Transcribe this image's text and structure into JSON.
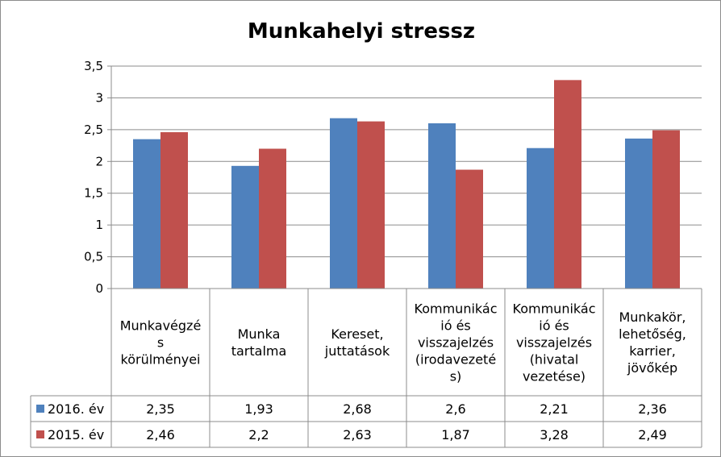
{
  "chart_data": {
    "type": "bar",
    "title": "Munkahelyi stressz",
    "categories": [
      [
        "Munkavégzé",
        "s",
        "körülményei"
      ],
      [
        "Munka",
        "tartalma"
      ],
      [
        "Kereset,",
        "juttatások"
      ],
      [
        "Kommunikác",
        "ió és",
        "visszajelzés",
        "(irodavezeté",
        "s)"
      ],
      [
        "Kommunikác",
        "ió és",
        "visszajelzés",
        "(hivatal",
        "vezetése)"
      ],
      [
        "Munkakör,",
        "lehetőség,",
        "karrier,",
        "jövőkép"
      ]
    ],
    "series": [
      {
        "name": "2016. év",
        "color": "#4f81bd",
        "values": [
          2.35,
          1.93,
          2.68,
          2.6,
          2.21,
          2.36
        ],
        "labels": [
          "2,35",
          "1,93",
          "2,68",
          "2,6",
          "2,21",
          "2,36"
        ]
      },
      {
        "name": "2015. év",
        "color": "#c0504d",
        "values": [
          2.46,
          2.2,
          2.63,
          1.87,
          3.28,
          2.49
        ],
        "labels": [
          "2,46",
          "2,2",
          "2,63",
          "1,87",
          "3,28",
          "2,49"
        ]
      }
    ],
    "ylim": [
      0,
      3.5
    ],
    "yticks": [
      0,
      0.5,
      1,
      1.5,
      2,
      2.5,
      3,
      3.5
    ],
    "ytick_labels": [
      "0",
      "0,5",
      "1",
      "1,5",
      "2",
      "2,5",
      "3",
      "3,5"
    ],
    "grid": true,
    "legend": "data-table"
  }
}
